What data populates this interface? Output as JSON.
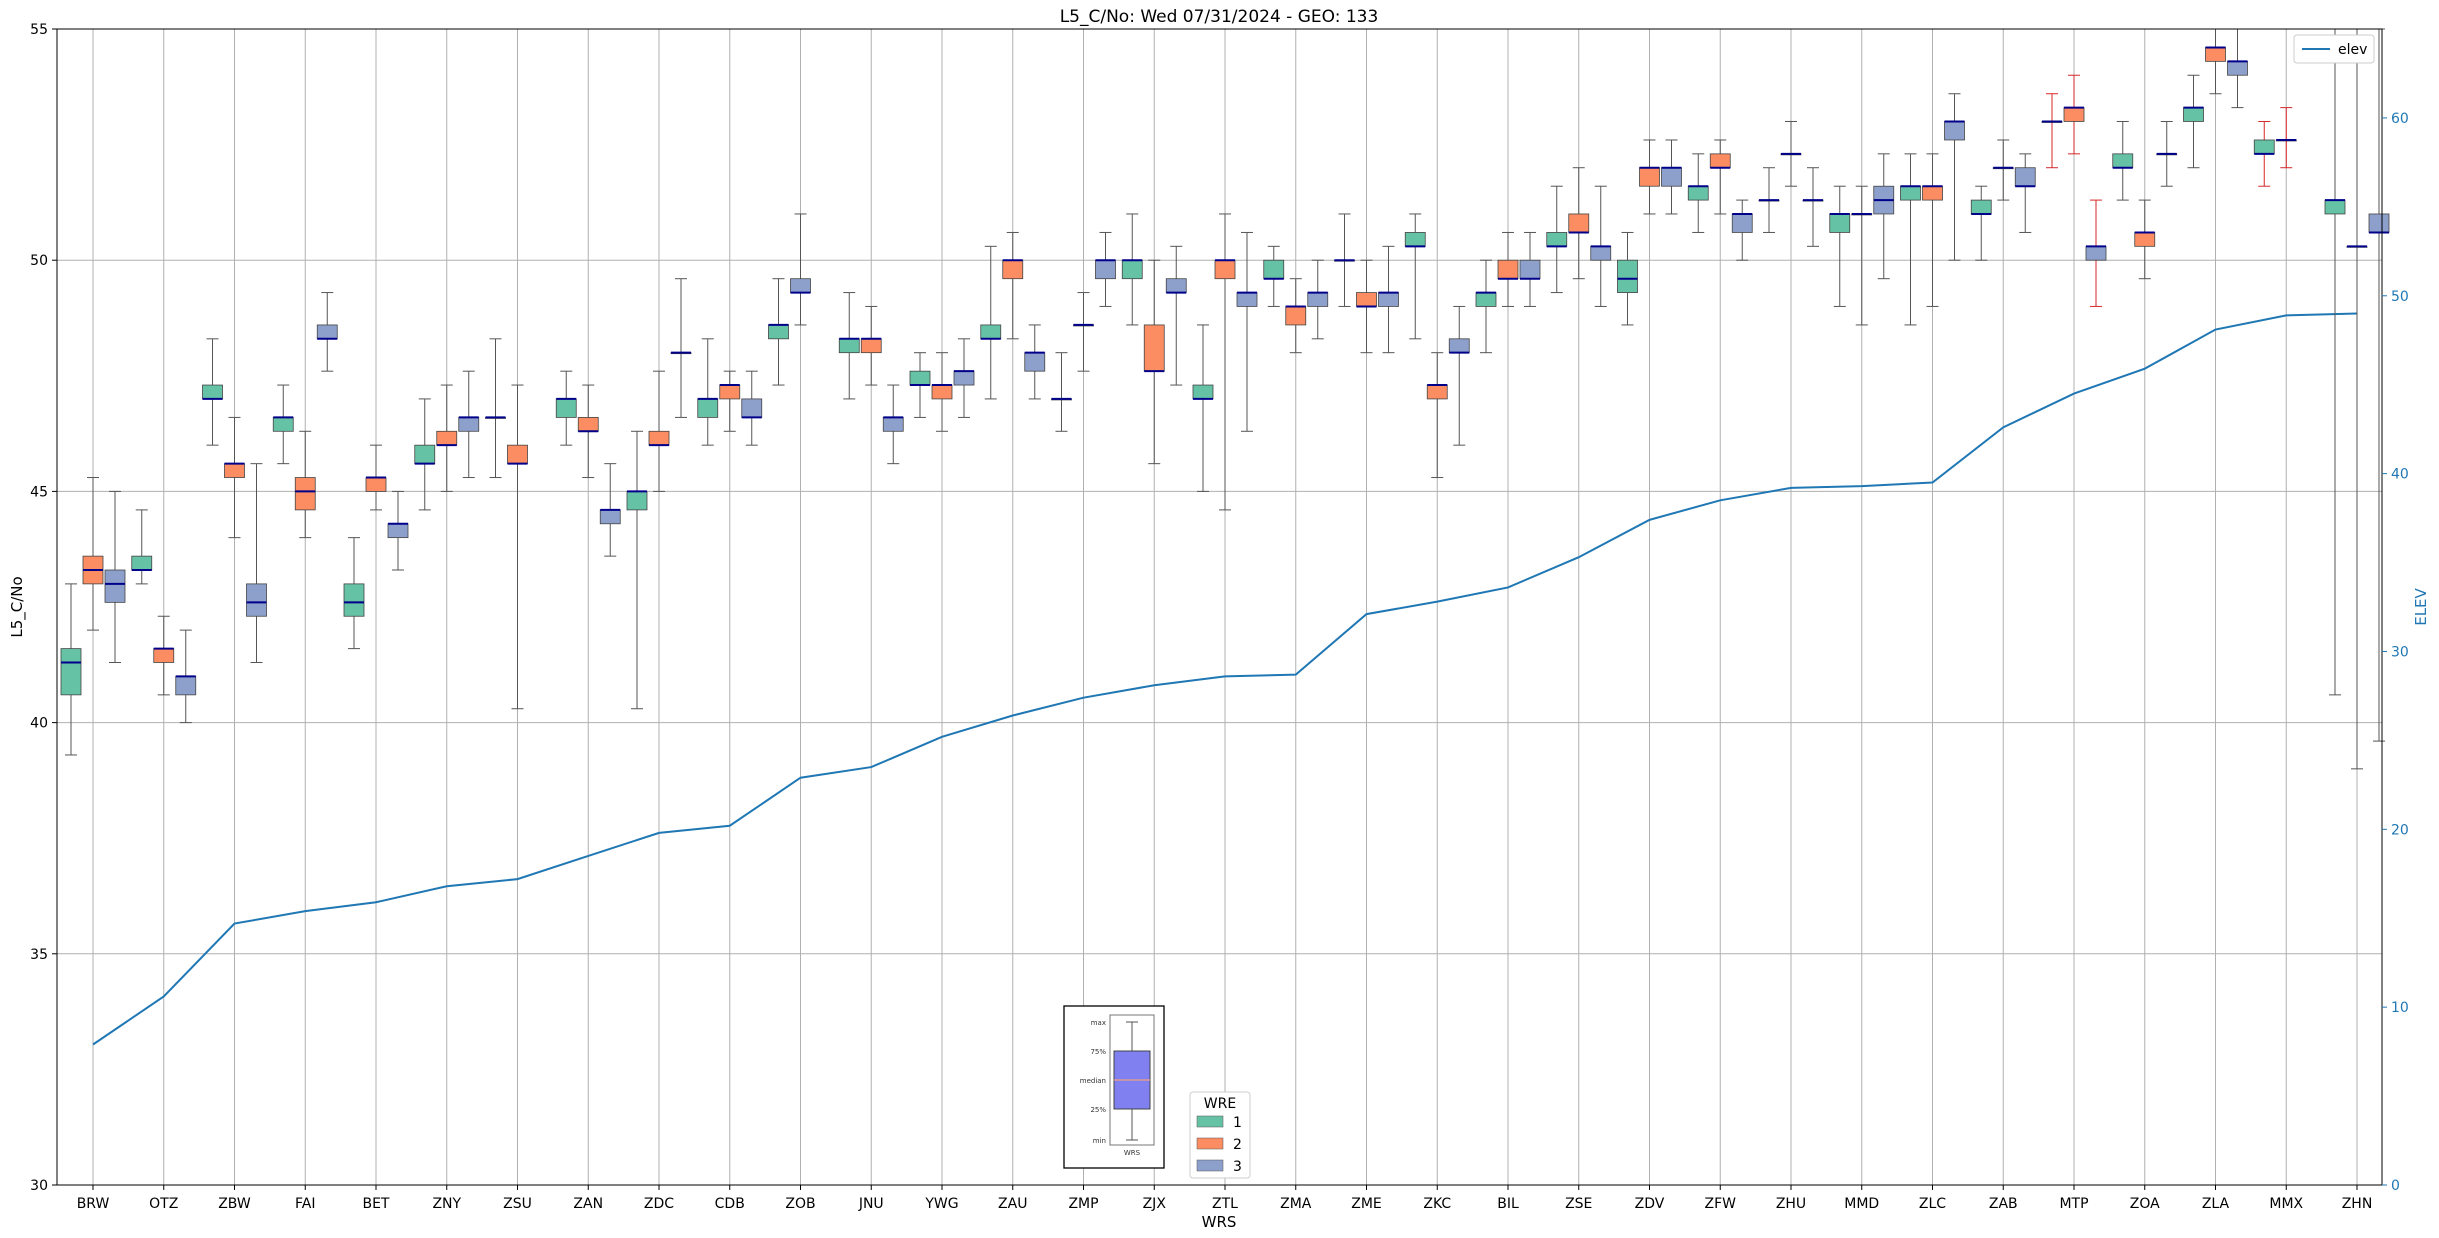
{
  "chart_data": {
    "type": "box",
    "title": "L5_C/No: Wed 07/31/2024 - GEO: 133",
    "xlabel": "WRS",
    "ylabel": "L5_C/No",
    "ylabel_right": "ELEV",
    "ylim": [
      30,
      55
    ],
    "ylim_right": [
      0,
      65
    ],
    "yticks": [
      30,
      35,
      40,
      45,
      50,
      55
    ],
    "yticks_right": [
      0,
      10,
      20,
      30,
      40,
      50,
      60
    ],
    "grid": true,
    "categories": [
      "BRW",
      "OTZ",
      "ZBW",
      "FAI",
      "BET",
      "ZNY",
      "ZSU",
      "ZAN",
      "ZDC",
      "CDB",
      "ZOB",
      "JNU",
      "YWG",
      "ZAU",
      "ZMP",
      "ZJX",
      "ZTL",
      "ZMA",
      "ZME",
      "ZKC",
      "BIL",
      "ZSE",
      "ZDV",
      "ZFW",
      "ZHU",
      "MMD",
      "ZLC",
      "ZAB",
      "MTP",
      "ZOA",
      "ZLA",
      "MMX",
      "ZHN"
    ],
    "series_legend_title": "WRE",
    "series": [
      {
        "name": "1",
        "color": "#66c2a5"
      },
      {
        "name": "2",
        "color": "#fc8d62"
      },
      {
        "name": "3",
        "color": "#8da0cb"
      }
    ],
    "boxes": [
      {
        "category": "BRW",
        "wre": 1,
        "min": 39.3,
        "q1": 40.6,
        "median": 41.3,
        "q3": 41.6,
        "max": 43.0
      },
      {
        "category": "BRW",
        "wre": 2,
        "min": 42.0,
        "q1": 43.0,
        "median": 43.3,
        "q3": 43.6,
        "max": 45.3
      },
      {
        "category": "BRW",
        "wre": 3,
        "min": 41.3,
        "q1": 42.6,
        "median": 43.0,
        "q3": 43.3,
        "max": 45.0
      },
      {
        "category": "OTZ",
        "wre": 1,
        "min": 43.0,
        "q1": 43.3,
        "median": 43.3,
        "q3": 43.6,
        "max": 44.6
      },
      {
        "category": "OTZ",
        "wre": 2,
        "min": 40.6,
        "q1": 41.3,
        "median": 41.6,
        "q3": 41.6,
        "max": 42.3
      },
      {
        "category": "OTZ",
        "wre": 3,
        "min": 40.0,
        "q1": 40.6,
        "median": 41.0,
        "q3": 41.0,
        "max": 42.0
      },
      {
        "category": "ZBW",
        "wre": 1,
        "min": 46.0,
        "q1": 47.0,
        "median": 47.0,
        "q3": 47.3,
        "max": 48.3
      },
      {
        "category": "ZBW",
        "wre": 2,
        "min": 44.0,
        "q1": 45.3,
        "median": 45.6,
        "q3": 45.6,
        "max": 46.6
      },
      {
        "category": "ZBW",
        "wre": 3,
        "min": 41.3,
        "q1": 42.3,
        "median": 42.6,
        "q3": 43.0,
        "max": 45.6
      },
      {
        "category": "FAI",
        "wre": 1,
        "min": 45.6,
        "q1": 46.3,
        "median": 46.6,
        "q3": 46.6,
        "max": 47.3
      },
      {
        "category": "FAI",
        "wre": 2,
        "min": 44.0,
        "q1": 44.6,
        "median": 45.0,
        "q3": 45.3,
        "max": 46.3
      },
      {
        "category": "FAI",
        "wre": 3,
        "min": 47.6,
        "q1": 48.3,
        "median": 48.3,
        "q3": 48.6,
        "max": 49.3
      },
      {
        "category": "BET",
        "wre": 1,
        "min": 41.6,
        "q1": 42.3,
        "median": 42.6,
        "q3": 43.0,
        "max": 44.0
      },
      {
        "category": "BET",
        "wre": 2,
        "min": 44.6,
        "q1": 45.0,
        "median": 45.3,
        "q3": 45.3,
        "max": 46.0
      },
      {
        "category": "BET",
        "wre": 3,
        "min": 43.3,
        "q1": 44.0,
        "median": 44.3,
        "q3": 44.3,
        "max": 45.0
      },
      {
        "category": "ZNY",
        "wre": 1,
        "min": 44.6,
        "q1": 45.6,
        "median": 45.6,
        "q3": 46.0,
        "max": 47.0
      },
      {
        "category": "ZNY",
        "wre": 2,
        "min": 45.0,
        "q1": 46.0,
        "median": 46.0,
        "q3": 46.3,
        "max": 47.3
      },
      {
        "category": "ZNY",
        "wre": 3,
        "min": 45.3,
        "q1": 46.3,
        "median": 46.6,
        "q3": 46.6,
        "max": 47.6
      },
      {
        "category": "ZSU",
        "wre": 3,
        "min": 45.3,
        "q1": 46.6,
        "median": 46.6,
        "q3": 46.6,
        "max": 48.3
      },
      {
        "category": "ZSU",
        "wre": 2,
        "min": 40.3,
        "q1": 45.6,
        "median": 45.6,
        "q3": 46.0,
        "max": 47.3
      },
      {
        "category": "ZAN",
        "wre": 1,
        "min": 46.0,
        "q1": 46.6,
        "median": 47.0,
        "q3": 47.0,
        "max": 47.6
      },
      {
        "category": "ZAN",
        "wre": 2,
        "min": 45.3,
        "q1": 46.3,
        "median": 46.3,
        "q3": 46.6,
        "max": 47.3
      },
      {
        "category": "ZAN",
        "wre": 3,
        "min": 43.6,
        "q1": 44.3,
        "median": 44.6,
        "q3": 44.6,
        "max": 45.6
      },
      {
        "category": "ZDC",
        "wre": 1,
        "min": 40.3,
        "q1": 44.6,
        "median": 45.0,
        "q3": 45.0,
        "max": 46.3
      },
      {
        "category": "ZDC",
        "wre": 2,
        "min": 45.0,
        "q1": 46.0,
        "median": 46.0,
        "q3": 46.3,
        "max": 47.6
      },
      {
        "category": "ZDC",
        "wre": 3,
        "min": 46.6,
        "q1": 48.0,
        "median": 48.0,
        "q3": 48.0,
        "max": 49.6
      },
      {
        "category": "CDB",
        "wre": 1,
        "min": 46.0,
        "q1": 46.6,
        "median": 47.0,
        "q3": 47.0,
        "max": 48.3
      },
      {
        "category": "CDB",
        "wre": 2,
        "min": 46.3,
        "q1": 47.0,
        "median": 47.3,
        "q3": 47.3,
        "max": 47.6
      },
      {
        "category": "CDB",
        "wre": 3,
        "min": 46.0,
        "q1": 46.6,
        "median": 46.6,
        "q3": 47.0,
        "max": 47.6
      },
      {
        "category": "ZOB",
        "wre": 1,
        "min": 47.3,
        "q1": 48.3,
        "median": 48.6,
        "q3": 48.6,
        "max": 49.6
      },
      {
        "category": "ZOB",
        "wre": 3,
        "min": 48.6,
        "q1": 49.3,
        "median": 49.3,
        "q3": 49.6,
        "max": 51.0
      },
      {
        "category": "JNU",
        "wre": 1,
        "min": 47.0,
        "q1": 48.0,
        "median": 48.3,
        "q3": 48.3,
        "max": 49.3
      },
      {
        "category": "JNU",
        "wre": 2,
        "min": 47.3,
        "q1": 48.0,
        "median": 48.3,
        "q3": 48.3,
        "max": 49.0
      },
      {
        "category": "JNU",
        "wre": 3,
        "min": 45.6,
        "q1": 46.3,
        "median": 46.6,
        "q3": 46.6,
        "max": 47.3
      },
      {
        "category": "YWG",
        "wre": 1,
        "min": 46.6,
        "q1": 47.3,
        "median": 47.3,
        "q3": 47.6,
        "max": 48.0
      },
      {
        "category": "YWG",
        "wre": 2,
        "min": 46.3,
        "q1": 47.0,
        "median": 47.3,
        "q3": 47.3,
        "max": 48.0
      },
      {
        "category": "YWG",
        "wre": 3,
        "min": 46.6,
        "q1": 47.3,
        "median": 47.6,
        "q3": 47.6,
        "max": 48.3
      },
      {
        "category": "ZAU",
        "wre": 1,
        "min": 47.0,
        "q1": 48.3,
        "median": 48.3,
        "q3": 48.6,
        "max": 50.3
      },
      {
        "category": "ZAU",
        "wre": 2,
        "min": 48.3,
        "q1": 49.6,
        "median": 50.0,
        "q3": 50.0,
        "max": 50.6
      },
      {
        "category": "ZAU",
        "wre": 3,
        "min": 47.0,
        "q1": 47.6,
        "median": 48.0,
        "q3": 48.0,
        "max": 48.6
      },
      {
        "category": "ZMP",
        "wre": 3,
        "min": 46.3,
        "q1": 47.0,
        "median": 47.0,
        "q3": 47.0,
        "max": 48.0
      },
      {
        "category": "ZMP",
        "wre": 2,
        "min": 47.6,
        "q1": 48.6,
        "median": 48.6,
        "q3": 48.6,
        "max": 49.3
      },
      {
        "category": "ZMP",
        "wre": 3,
        "min": 49.0,
        "q1": 49.6,
        "median": 50.0,
        "q3": 50.0,
        "max": 50.6
      },
      {
        "category": "ZJX",
        "wre": 1,
        "min": 48.6,
        "q1": 49.6,
        "median": 50.0,
        "q3": 50.0,
        "max": 51.0
      },
      {
        "category": "ZJX",
        "wre": 2,
        "min": 45.6,
        "q1": 47.6,
        "median": 47.6,
        "q3": 48.6,
        "max": 50.0
      },
      {
        "category": "ZJX",
        "wre": 3,
        "min": 47.3,
        "q1": 49.3,
        "median": 49.3,
        "q3": 49.6,
        "max": 50.3
      },
      {
        "category": "ZTL",
        "wre": 1,
        "min": 45.0,
        "q1": 47.0,
        "median": 47.0,
        "q3": 47.3,
        "max": 48.6
      },
      {
        "category": "ZTL",
        "wre": 2,
        "min": 44.6,
        "q1": 49.6,
        "median": 50.0,
        "q3": 50.0,
        "max": 51.0
      },
      {
        "category": "ZTL",
        "wre": 3,
        "min": 46.3,
        "q1": 49.0,
        "median": 49.3,
        "q3": 49.3,
        "max": 50.6
      },
      {
        "category": "ZMA",
        "wre": 1,
        "min": 49.0,
        "q1": 49.6,
        "median": 49.6,
        "q3": 50.0,
        "max": 50.3
      },
      {
        "category": "ZMA",
        "wre": 2,
        "min": 48.0,
        "q1": 48.6,
        "median": 49.0,
        "q3": 49.0,
        "max": 49.6
      },
      {
        "category": "ZMA",
        "wre": 3,
        "min": 48.3,
        "q1": 49.0,
        "median": 49.3,
        "q3": 49.3,
        "max": 50.0
      },
      {
        "category": "ZME",
        "wre": 3,
        "min": 49.0,
        "q1": 50.0,
        "median": 50.0,
        "q3": 50.0,
        "max": 51.0
      },
      {
        "category": "ZME",
        "wre": 2,
        "min": 48.0,
        "q1": 49.0,
        "median": 49.0,
        "q3": 49.3,
        "max": 50.0
      },
      {
        "category": "ZME",
        "wre": 3,
        "min": 48.0,
        "q1": 49.0,
        "median": 49.3,
        "q3": 49.3,
        "max": 50.3
      },
      {
        "category": "ZKC",
        "wre": 1,
        "min": 48.3,
        "q1": 50.3,
        "median": 50.3,
        "q3": 50.6,
        "max": 51.0
      },
      {
        "category": "ZKC",
        "wre": 2,
        "min": 45.3,
        "q1": 47.0,
        "median": 47.3,
        "q3": 47.3,
        "max": 48.0
      },
      {
        "category": "ZKC",
        "wre": 3,
        "min": 46.0,
        "q1": 48.0,
        "median": 48.0,
        "q3": 48.3,
        "max": 49.0
      },
      {
        "category": "BIL",
        "wre": 1,
        "min": 48.0,
        "q1": 49.0,
        "median": 49.3,
        "q3": 49.3,
        "max": 50.0
      },
      {
        "category": "BIL",
        "wre": 2,
        "min": 49.0,
        "q1": 49.6,
        "median": 49.6,
        "q3": 50.0,
        "max": 50.6
      },
      {
        "category": "BIL",
        "wre": 3,
        "min": 49.0,
        "q1": 49.6,
        "median": 49.6,
        "q3": 50.0,
        "max": 50.6
      },
      {
        "category": "ZSE",
        "wre": 1,
        "min": 49.3,
        "q1": 50.3,
        "median": 50.3,
        "q3": 50.6,
        "max": 51.6
      },
      {
        "category": "ZSE",
        "wre": 2,
        "min": 49.6,
        "q1": 50.6,
        "median": 50.6,
        "q3": 51.0,
        "max": 52.0
      },
      {
        "category": "ZSE",
        "wre": 3,
        "min": 49.0,
        "q1": 50.0,
        "median": 50.3,
        "q3": 50.3,
        "max": 51.6
      },
      {
        "category": "ZDV",
        "wre": 1,
        "min": 48.6,
        "q1": 49.3,
        "median": 49.6,
        "q3": 50.0,
        "max": 50.6
      },
      {
        "category": "ZDV",
        "wre": 2,
        "min": 51.0,
        "q1": 51.6,
        "median": 52.0,
        "q3": 52.0,
        "max": 52.6
      },
      {
        "category": "ZDV",
        "wre": 3,
        "min": 51.0,
        "q1": 51.6,
        "median": 52.0,
        "q3": 52.0,
        "max": 52.6
      },
      {
        "category": "ZFW",
        "wre": 1,
        "min": 50.6,
        "q1": 51.3,
        "median": 51.6,
        "q3": 51.6,
        "max": 52.3
      },
      {
        "category": "ZFW",
        "wre": 2,
        "min": 51.0,
        "q1": 52.0,
        "median": 52.0,
        "q3": 52.3,
        "max": 52.6
      },
      {
        "category": "ZFW",
        "wre": 3,
        "min": 50.0,
        "q1": 50.6,
        "median": 51.0,
        "q3": 51.0,
        "max": 51.3
      },
      {
        "category": "ZHU",
        "wre": 3,
        "min": 50.6,
        "q1": 51.3,
        "median": 51.3,
        "q3": 51.3,
        "max": 52.0
      },
      {
        "category": "ZHU",
        "wre": 3,
        "min": 51.6,
        "q1": 52.3,
        "median": 52.3,
        "q3": 52.3,
        "max": 53.0
      },
      {
        "category": "ZHU",
        "wre": 3,
        "min": 50.3,
        "q1": 51.3,
        "median": 51.3,
        "q3": 51.3,
        "max": 52.0
      },
      {
        "category": "MMD",
        "wre": 1,
        "min": 49.0,
        "q1": 50.6,
        "median": 51.0,
        "q3": 51.0,
        "max": 51.6
      },
      {
        "category": "MMD",
        "wre": 3,
        "min": 48.6,
        "q1": 51.0,
        "median": 51.0,
        "q3": 51.0,
        "max": 51.6
      },
      {
        "category": "MMD",
        "wre": 3,
        "min": 49.6,
        "q1": 51.0,
        "median": 51.3,
        "q3": 51.6,
        "max": 52.3
      },
      {
        "category": "ZLC",
        "wre": 1,
        "min": 48.6,
        "q1": 51.3,
        "median": 51.6,
        "q3": 51.6,
        "max": 52.3
      },
      {
        "category": "ZLC",
        "wre": 2,
        "min": 49.0,
        "q1": 51.3,
        "median": 51.6,
        "q3": 51.6,
        "max": 52.3
      },
      {
        "category": "ZLC",
        "wre": 3,
        "min": 50.0,
        "q1": 52.6,
        "median": 53.0,
        "q3": 53.0,
        "max": 53.6
      },
      {
        "category": "ZAB",
        "wre": 1,
        "min": 50.0,
        "q1": 51.0,
        "median": 51.0,
        "q3": 51.3,
        "max": 51.6
      },
      {
        "category": "ZAB",
        "wre": 3,
        "min": 51.3,
        "q1": 52.0,
        "median": 52.0,
        "q3": 52.0,
        "max": 52.6
      },
      {
        "category": "ZAB",
        "wre": 3,
        "min": 50.6,
        "q1": 51.6,
        "median": 51.6,
        "q3": 52.0,
        "max": 52.3
      },
      {
        "category": "MTP",
        "wre": 2,
        "min": 52.0,
        "q1": 53.0,
        "median": 53.0,
        "q3": 53.0,
        "max": 53.6
      },
      {
        "category": "MTP",
        "wre": 2,
        "min": 52.3,
        "q1": 53.0,
        "median": 53.3,
        "q3": 53.3,
        "max": 54.0
      },
      {
        "category": "MTP",
        "wre": 3,
        "min": 49.0,
        "q1": 50.0,
        "median": 50.3,
        "q3": 50.3,
        "max": 51.3
      },
      {
        "category": "ZOA",
        "wre": 1,
        "min": 51.3,
        "q1": 52.0,
        "median": 52.0,
        "q3": 52.3,
        "max": 53.0
      },
      {
        "category": "ZOA",
        "wre": 2,
        "min": 49.6,
        "q1": 50.3,
        "median": 50.6,
        "q3": 50.6,
        "max": 51.3
      },
      {
        "category": "ZOA",
        "wre": 3,
        "min": 51.6,
        "q1": 52.3,
        "median": 52.3,
        "q3": 52.3,
        "max": 53.0
      },
      {
        "category": "ZLA",
        "wre": 1,
        "min": 52.0,
        "q1": 53.0,
        "median": 53.3,
        "q3": 53.3,
        "max": 54.0
      },
      {
        "category": "ZLA",
        "wre": 2,
        "min": 53.6,
        "q1": 54.3,
        "median": 54.6,
        "q3": 54.6,
        "max": 55.0
      },
      {
        "category": "ZLA",
        "wre": 3,
        "min": 53.3,
        "q1": 54.0,
        "median": 54.3,
        "q3": 54.3,
        "max": 55.0
      },
      {
        "category": "MMX",
        "wre": 1,
        "min": 51.6,
        "q1": 52.3,
        "median": 52.3,
        "q3": 52.6,
        "max": 53.0
      },
      {
        "category": "MMX",
        "wre": 2,
        "min": 52.0,
        "q1": 52.6,
        "median": 52.6,
        "q3": 52.6,
        "max": 53.3
      },
      {
        "category": "ZHN",
        "wre": 1,
        "min": 40.6,
        "q1": 51.0,
        "median": 51.3,
        "q3": 51.3,
        "max": 55.0
      },
      {
        "category": "ZHN",
        "wre": 2,
        "min": 39.0,
        "q1": 50.3,
        "median": 50.3,
        "q3": 50.3,
        "max": 55.0
      },
      {
        "category": "ZHN",
        "wre": 3,
        "min": 39.6,
        "q1": 50.6,
        "median": 50.6,
        "q3": 51.0,
        "max": 55.0
      }
    ],
    "elev_line": {
      "name": "elev",
      "color": "#1f77b4",
      "values": [
        7.9,
        10.6,
        14.7,
        15.4,
        15.9,
        16.8,
        17.2,
        18.5,
        19.8,
        20.2,
        22.9,
        23.5,
        25.2,
        26.4,
        27.4,
        28.1,
        28.6,
        28.7,
        32.1,
        32.8,
        33.6,
        35.3,
        37.4,
        38.5,
        39.2,
        39.3,
        39.5,
        42.6,
        44.5,
        45.9,
        48.1,
        48.9,
        49.0
      ]
    },
    "legend_top_right": "elev",
    "inset_key": {
      "labels": [
        "max",
        "75%",
        "median",
        "25%",
        "min"
      ],
      "caption": "WRS"
    },
    "outlier_whisker_color": "#d62728",
    "median_color": "#00008b"
  }
}
